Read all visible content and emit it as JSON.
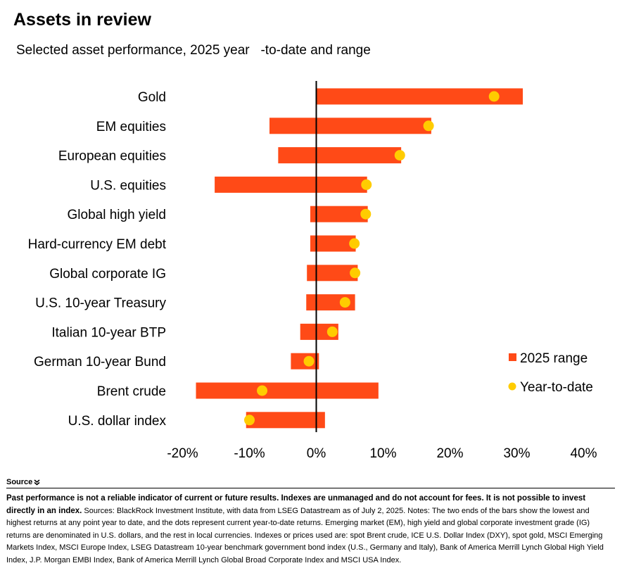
{
  "title": "Assets in review",
  "subtitle": "Selected asset performance, 2025 year   -to-date and range",
  "chart_data": {
    "type": "bar",
    "orientation": "horizontal",
    "categories": [
      "Gold",
      "EM equities",
      "European equities",
      "U.S. equities",
      "Global high yield",
      "Hard-currency EM debt",
      "Global corporate IG",
      "U.S. 10-year Treasury",
      "Italian 10-year BTP",
      "German 10-year Bund",
      "Brent crude",
      "U.S. dollar index"
    ],
    "series": [
      {
        "name": "2025 range",
        "type": "range-bar",
        "color": "#ff4a17",
        "low": [
          0.0,
          -7.0,
          -5.7,
          -15.2,
          -0.9,
          -0.9,
          -1.4,
          -1.5,
          -2.4,
          -3.8,
          -18.0,
          -10.5
        ],
        "high": [
          30.9,
          17.2,
          12.7,
          7.6,
          7.7,
          5.9,
          6.2,
          5.8,
          3.3,
          0.4,
          9.3,
          1.3
        ]
      },
      {
        "name": "Year-to-date",
        "type": "dot",
        "color": "#ffcc00",
        "values": [
          26.6,
          16.8,
          12.5,
          7.5,
          7.4,
          5.7,
          5.8,
          4.3,
          2.4,
          -1.1,
          -8.1,
          -10.0
        ]
      }
    ],
    "xlim": [
      -20,
      40
    ],
    "xticks": [
      "-20%",
      "-10%",
      "0%",
      "10%",
      "20%",
      "30%",
      "40%"
    ],
    "xtick_values": [
      -20,
      -10,
      0,
      10,
      20,
      30,
      40
    ],
    "legend_position": "bottom-right",
    "grid": false
  },
  "source": {
    "label": "Source",
    "notes_bold": "Past performance is not a reliable indicator of current or future results. Indexes are unmanaged and do not account for fees. It is not possible to invest directly in an index.",
    "notes_text": " Sources: BlackRock Investment Institute, with data from LSEG Datastream as of July 2, 2025. Notes: The two ends of the bars show the lowest and highest returns at any point year to date, and the dots represent current year-to-date returns. Emerging market (EM), high yield and global corporate investment grade (IG) returns are denominated in U.S. dollars, and the rest in local currencies. Indexes or prices used are: spot Brent crude, ICE U.S. Dollar Index (DXY), spot gold, MSCI Emerging Markets Index, MSCI Europe Index, LSEG Datastream 10-year benchmark government bond index (U.S., Germany and Italy), Bank of America Merrill Lynch Global High Yield Index, J.P. Morgan EMBI Index, Bank of America Merrill Lynch Global Broad Corporate Index and MSCI USA Index."
  }
}
